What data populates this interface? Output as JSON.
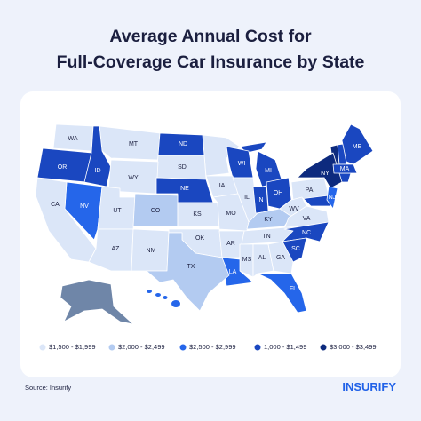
{
  "header": {
    "title_line1": "Average Annual Cost for",
    "title_line2": "Full-Coverage Car Insurance by State"
  },
  "legend": [
    {
      "label": "$1,500 - $1,999",
      "color": "#dbe6f8"
    },
    {
      "label": "$2,000 - $2,499",
      "color": "#b3cbf1"
    },
    {
      "label": "$2,500 - $2,999",
      "color": "#2566ea"
    },
    {
      "label": "1,000 - $1,499",
      "color": "#1a47c0"
    },
    {
      "label": "$3,000 - $3,499",
      "color": "#0d2a7e"
    }
  ],
  "states": [
    {
      "label": "WA",
      "color": "#dbe6f8"
    },
    {
      "label": "MT",
      "color": "#dbe6f8"
    },
    {
      "label": "ND",
      "color": "#1a47c0"
    },
    {
      "label": "OR",
      "color": "#1a47c0"
    },
    {
      "label": "ID",
      "color": "#1a47c0"
    },
    {
      "label": "SD",
      "color": "#dbe6f8"
    },
    {
      "label": "WI",
      "color": "#1a47c0"
    },
    {
      "label": "MI",
      "color": "#1a47c0"
    },
    {
      "label": "NY",
      "color": "#0d2a7e"
    },
    {
      "label": "ME",
      "color": "#1a47c0"
    },
    {
      "label": "WY",
      "color": "#dbe6f8"
    },
    {
      "label": "NE",
      "color": "#1a47c0"
    },
    {
      "label": "IA",
      "color": "#dbe6f8"
    },
    {
      "label": "PA",
      "color": "#dbe6f8"
    },
    {
      "label": "NV",
      "color": "#2566ea"
    },
    {
      "label": "UT",
      "color": "#dbe6f8"
    },
    {
      "label": "CO",
      "color": "#b3cbf1"
    },
    {
      "label": "IL",
      "color": "#dbe6f8"
    },
    {
      "label": "IN",
      "color": "#1a47c0"
    },
    {
      "label": "OH",
      "color": "#1a47c0"
    },
    {
      "label": "KS",
      "color": "#dbe6f8"
    },
    {
      "label": "MO",
      "color": "#dbe6f8"
    },
    {
      "label": "KY",
      "color": "#b3cbf1"
    },
    {
      "label": "CA",
      "color": "#dbe6f8"
    },
    {
      "label": "WV",
      "color": "#dbe6f8"
    },
    {
      "label": "VA",
      "color": "#dbe6f8"
    },
    {
      "label": "MA",
      "color": "#1a47c0"
    },
    {
      "label": "NJ",
      "color": "#2566ea"
    },
    {
      "label": "OK",
      "color": "#dbe6f8"
    },
    {
      "label": "AR",
      "color": "#dbe6f8"
    },
    {
      "label": "TN",
      "color": "#dbe6f8"
    },
    {
      "label": "NC",
      "color": "#1a47c0"
    },
    {
      "label": "AZ",
      "color": "#dbe6f8"
    },
    {
      "label": "NM",
      "color": "#dbe6f8"
    },
    {
      "label": "SC",
      "color": "#1a47c0"
    },
    {
      "label": "MS",
      "color": "#dbe6f8"
    },
    {
      "label": "AL",
      "color": "#dbe6f8"
    },
    {
      "label": "GA",
      "color": "#dbe6f8"
    },
    {
      "label": "LA",
      "color": "#2566ea"
    },
    {
      "label": "TX",
      "color": "#b3cbf1"
    },
    {
      "label": "FL",
      "color": "#2566ea"
    }
  ],
  "footer": {
    "source": "Source: Insurify",
    "logo": "INSURIFY"
  }
}
